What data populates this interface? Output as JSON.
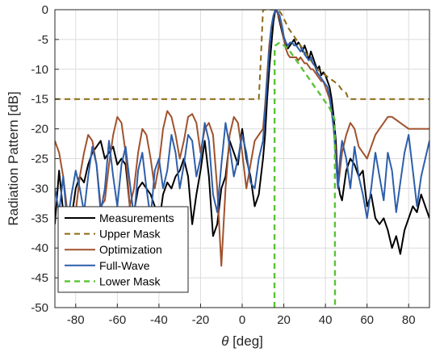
{
  "chart_data": {
    "type": "line",
    "title": "",
    "xlabel": "θ [deg]",
    "xlabel_symbol": "θ",
    "xlabel_unit": " [deg]",
    "ylabel": "Radiation Pattern [dB]",
    "xlim": [
      -90,
      90
    ],
    "ylim": [
      -50,
      0
    ],
    "xticks": [
      -80,
      -60,
      -40,
      -20,
      0,
      20,
      40,
      60,
      80
    ],
    "yticks": [
      0,
      -5,
      -10,
      -15,
      -20,
      -25,
      -30,
      -35,
      -40,
      -45,
      -50
    ],
    "grid": true,
    "legend_position": "bottom-left",
    "series": [
      {
        "name": "Measurements",
        "color": "#000000",
        "dash": "solid",
        "x": [
          -90,
          -88,
          -86,
          -84,
          -82,
          -80,
          -78,
          -76,
          -74,
          -72,
          -70,
          -68,
          -66,
          -64,
          -62,
          -60,
          -58,
          -56,
          -54,
          -52,
          -50,
          -48,
          -46,
          -44,
          -42,
          -40,
          -38,
          -36,
          -34,
          -32,
          -30,
          -28,
          -26,
          -24,
          -22,
          -20,
          -18,
          -16,
          -14,
          -12,
          -10,
          -8,
          -6,
          -4,
          -2,
          0,
          2,
          4,
          6,
          8,
          10,
          11,
          12,
          13,
          14,
          15,
          16,
          17,
          18,
          19,
          20,
          21,
          22,
          23,
          24,
          25,
          26,
          27,
          28,
          29,
          30,
          31,
          32,
          33,
          34,
          35,
          36,
          37,
          38,
          39,
          40,
          41,
          42,
          43,
          44,
          45,
          46,
          47,
          48,
          50,
          52,
          54,
          56,
          58,
          60,
          62,
          64,
          66,
          68,
          70,
          72,
          74,
          76,
          78,
          80,
          82,
          84,
          86,
          88,
          90
        ],
        "values": [
          -36,
          -27,
          -34,
          -38,
          -35,
          -30,
          -28,
          -29,
          -26,
          -24,
          -23,
          -22,
          -25,
          -24,
          -23,
          -26,
          -25,
          -26,
          -33,
          -34,
          -30,
          -29,
          -30,
          -31,
          -33,
          -36,
          -31,
          -29,
          -30,
          -28,
          -27,
          -25,
          -28,
          -36,
          -31,
          -27,
          -22,
          -28,
          -38,
          -36,
          -30,
          -28,
          -22,
          -24,
          -26,
          -20,
          -25,
          -28,
          -33,
          -31,
          -25,
          -21,
          -15,
          -10,
          -6,
          -2,
          0,
          -0.5,
          -2,
          -3.5,
          -5,
          -6,
          -6.5,
          -6,
          -5.5,
          -5,
          -6,
          -5.5,
          -6,
          -7,
          -6,
          -7,
          -8.5,
          -7,
          -8,
          -9,
          -10,
          -9.5,
          -11,
          -10.5,
          -11,
          -12,
          -13,
          -15,
          -18,
          -22,
          -29,
          -31,
          -32,
          -27,
          -25,
          -26,
          -28,
          -27,
          -33,
          -31,
          -35,
          -36,
          -35,
          -37,
          -40,
          -38,
          -41,
          -37,
          -35,
          -33,
          -34,
          -31,
          -33,
          -35
        ],
        "width": 2.0
      },
      {
        "name": "Upper Mask",
        "color": "#8B6914",
        "dash": "dashed",
        "x": [
          -90,
          -80,
          -60,
          -40,
          -20,
          0,
          8,
          9,
          10,
          11,
          12,
          13,
          14,
          15,
          16,
          17,
          18,
          19,
          20,
          21,
          22,
          24,
          26,
          28,
          30,
          32,
          34,
          36,
          38,
          40,
          42,
          44,
          46,
          48,
          50,
          51,
          52,
          60,
          70,
          80,
          90
        ],
        "values": [
          -15,
          -15,
          -15,
          -15,
          -15,
          -15,
          -15,
          -8,
          0,
          0,
          0,
          0,
          0,
          0,
          0,
          0,
          -0.3,
          -0.8,
          -1.5,
          -2.2,
          -3,
          -4,
          -5,
          -6,
          -7,
          -8,
          -9,
          -10,
          -10.5,
          -11,
          -11.5,
          -12,
          -12.5,
          -13.5,
          -14,
          -15,
          -15,
          -15,
          -15,
          -15,
          -15
        ],
        "width": 2.0
      },
      {
        "name": "Optimization",
        "color": "#A0522D",
        "dash": "solid",
        "x": [
          -90,
          -88,
          -86,
          -84,
          -82,
          -80,
          -78,
          -76,
          -74,
          -72,
          -70,
          -68,
          -66,
          -64,
          -62,
          -60,
          -58,
          -56,
          -54,
          -52,
          -50,
          -48,
          -46,
          -44,
          -42,
          -40,
          -38,
          -36,
          -34,
          -32,
          -30,
          -28,
          -26,
          -24,
          -22,
          -20,
          -18,
          -16,
          -14,
          -12,
          -10,
          -8,
          -6,
          -4,
          -2,
          0,
          2,
          4,
          6,
          8,
          10,
          11,
          12,
          13,
          14,
          15,
          16,
          17,
          18,
          19,
          20,
          21,
          22,
          23,
          24,
          25,
          26,
          27,
          28,
          29,
          30,
          31,
          32,
          33,
          34,
          35,
          36,
          37,
          38,
          39,
          40,
          41,
          42,
          43,
          44,
          45,
          46,
          47,
          48,
          50,
          52,
          54,
          56,
          58,
          60,
          62,
          64,
          66,
          68,
          70,
          72,
          74,
          76,
          78,
          80,
          82,
          84,
          86,
          88,
          90
        ],
        "values": [
          -22,
          -24,
          -28,
          -34,
          -40,
          -34,
          -28,
          -24,
          -21,
          -22,
          -26,
          -33,
          -32,
          -26,
          -21,
          -18,
          -19,
          -24,
          -33,
          -30,
          -24,
          -20,
          -21,
          -25,
          -30,
          -26,
          -20,
          -17,
          -18,
          -21,
          -25,
          -22,
          -18,
          -17.5,
          -19,
          -24,
          -20,
          -19,
          -21,
          -30,
          -43,
          -30,
          -21,
          -18,
          -19,
          -24,
          -30,
          -26,
          -22,
          -21,
          -20,
          -16,
          -11,
          -6,
          -3,
          -1,
          0,
          -0.5,
          -1.5,
          -3,
          -5,
          -6.5,
          -7.5,
          -8,
          -8,
          -8,
          -8,
          -8.5,
          -8,
          -8.5,
          -9,
          -9,
          -9.5,
          -10,
          -10,
          -10.5,
          -11,
          -11.5,
          -12,
          -12,
          -13,
          -14,
          -15,
          -17,
          -20,
          -24,
          -30,
          -27,
          -24,
          -21,
          -19,
          -20,
          -23,
          -24,
          -25,
          -23,
          -21,
          -20,
          -19,
          -18,
          -18,
          -18.5,
          -19,
          -19.5,
          -20,
          -20,
          -20,
          -20,
          -20,
          -20
        ],
        "width": 2.0
      },
      {
        "name": "Full-Wave",
        "color": "#2E5EAA",
        "dash": "solid",
        "x": [
          -90,
          -88,
          -86,
          -84,
          -82,
          -80,
          -78,
          -76,
          -74,
          -72,
          -70,
          -68,
          -66,
          -64,
          -62,
          -60,
          -58,
          -56,
          -54,
          -52,
          -50,
          -48,
          -46,
          -44,
          -42,
          -40,
          -38,
          -36,
          -34,
          -32,
          -30,
          -28,
          -26,
          -24,
          -22,
          -20,
          -18,
          -16,
          -14,
          -12,
          -10,
          -8,
          -6,
          -4,
          -2,
          0,
          2,
          4,
          6,
          8,
          10,
          11,
          12,
          13,
          14,
          15,
          16,
          17,
          18,
          19,
          20,
          21,
          22,
          23,
          24,
          25,
          26,
          27,
          28,
          29,
          30,
          31,
          32,
          33,
          34,
          35,
          36,
          37,
          38,
          39,
          40,
          41,
          42,
          43,
          44,
          45,
          46,
          47,
          48,
          50,
          52,
          54,
          56,
          58,
          60,
          62,
          64,
          66,
          68,
          70,
          72,
          74,
          76,
          78,
          80,
          82,
          84,
          86,
          88,
          90
        ],
        "values": [
          -30,
          -34,
          -28,
          -36,
          -31,
          -27,
          -30,
          -34,
          -28,
          -23,
          -26,
          -34,
          -30,
          -22,
          -28,
          -33,
          -26,
          -23,
          -29,
          -35,
          -27,
          -24,
          -30,
          -35,
          -27,
          -25,
          -30,
          -27,
          -21,
          -24,
          -30,
          -26,
          -21,
          -22,
          -28,
          -25,
          -19,
          -22,
          -31,
          -34,
          -26,
          -19,
          -23,
          -28,
          -25,
          -21,
          -24,
          -29,
          -30,
          -25,
          -22,
          -17,
          -12,
          -7,
          -3,
          -1,
          0,
          -0.3,
          -1,
          -2.5,
          -4.5,
          -5.5,
          -6,
          -5.5,
          -5.5,
          -6,
          -6,
          -6.5,
          -7,
          -6.5,
          -7.5,
          -8,
          -8.5,
          -8,
          -9,
          -9.5,
          -10.5,
          -11,
          -11.5,
          -12,
          -12.5,
          -13,
          -14.5,
          -17,
          -20,
          -25,
          -30,
          -25,
          -22,
          -25,
          -30,
          -23,
          -28,
          -31,
          -35,
          -30,
          -24,
          -28,
          -32,
          -24,
          -27,
          -34,
          -29,
          -24,
          -21,
          -27,
          -33,
          -28,
          -25,
          -22
        ],
        "width": 2.0
      },
      {
        "name": "Lower Mask",
        "color": "#5BC236",
        "dash": "dashed",
        "x": [
          15.5,
          15.6,
          16,
          18,
          20,
          22,
          24,
          26,
          28,
          30,
          32,
          34,
          36,
          38,
          40,
          42,
          44,
          44.5,
          44.6
        ],
        "values": [
          -50,
          -7,
          -6,
          -5.5,
          -6,
          -6.5,
          -7.5,
          -8.5,
          -9.5,
          -10.5,
          -11.5,
          -12.5,
          -13.5,
          -14.5,
          -15.5,
          -16.5,
          -18,
          -18.5,
          -50
        ],
        "width": 2.4
      }
    ]
  }
}
